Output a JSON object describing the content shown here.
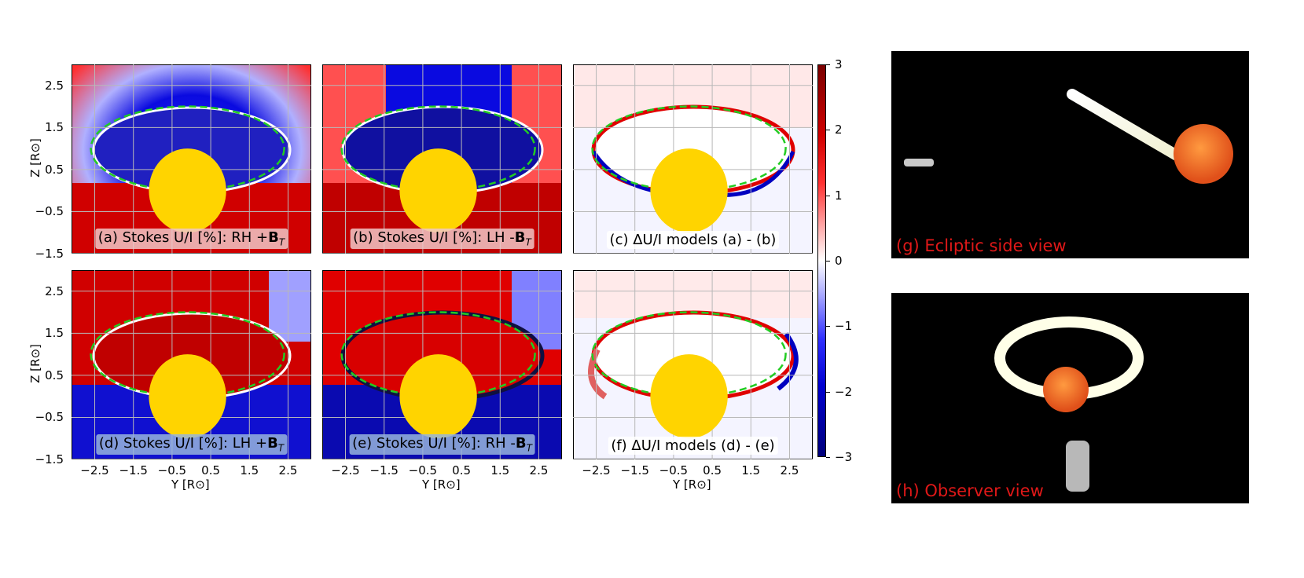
{
  "panels": {
    "a": {
      "label": "(a) Stokes U/I [%]: RH +",
      "bfield": "B",
      "sub": "T"
    },
    "b": {
      "label": "(b) Stokes U/I [%]: LH -",
      "bfield": "B",
      "sub": "T"
    },
    "c": {
      "label": "(c) ΔU/I models (a) - (b)"
    },
    "d": {
      "label": "(d) Stokes U/I [%]: LH +",
      "bfield": "B",
      "sub": "T"
    },
    "e": {
      "label": "(e) Stokes U/I [%]: RH -",
      "bfield": "B",
      "sub": "T"
    },
    "f": {
      "label": "(f) ΔU/I models (d) - (e)"
    }
  },
  "axes": {
    "ylabel": "Z [R⊙]",
    "xlabel": "Y [R⊙]",
    "yticks": [
      "2.5",
      "1.5",
      "0.5",
      "−0.5",
      "−1.5"
    ],
    "xticks": [
      "−2.5",
      "−1.5",
      "−0.5",
      "0.5",
      "1.5",
      "2.5"
    ]
  },
  "colorbar": {
    "ticks": [
      "3",
      "2",
      "1",
      "0",
      "−1",
      "−2",
      "−3"
    ],
    "range": [
      -3,
      3
    ],
    "colors": {
      "max": "#7a0000",
      "mid": "#ffffff",
      "min": "#00007a"
    }
  },
  "renders": {
    "g": {
      "caption": "(g) Ecliptic side view"
    },
    "h": {
      "caption": "(h) Observer view"
    }
  },
  "colors": {
    "sun_disk": "#ffd400",
    "ellipse": "#22cc22",
    "caption_red": "#e01818"
  }
}
